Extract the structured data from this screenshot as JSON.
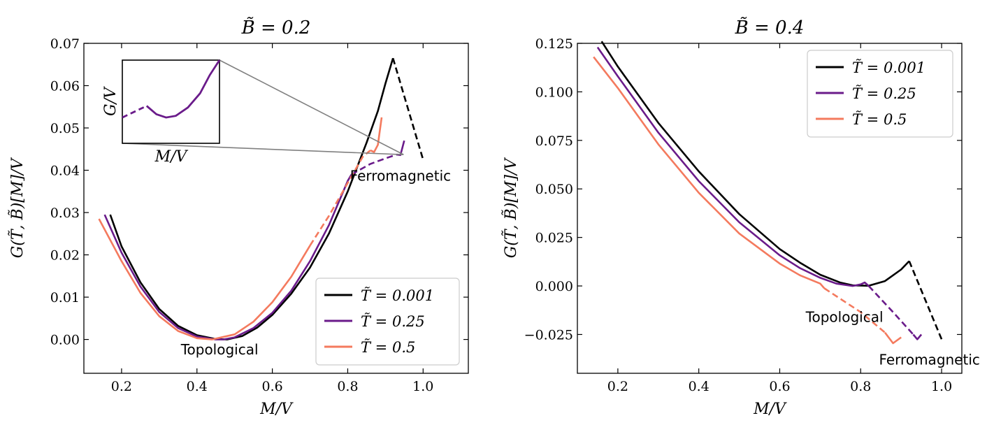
{
  "chart_data": [
    {
      "type": "line",
      "title": "B̃ = 0.2",
      "xlabel": "M/V",
      "ylabel": "G(T̃, B̃)[M]/V",
      "xlim": [
        0.1,
        1.12
      ],
      "ylim": [
        -0.008,
        0.07
      ],
      "xticks": [
        0.2,
        0.4,
        0.6,
        0.8,
        1.0
      ],
      "xtick_labels": [
        "0.2",
        "0.4",
        "0.6",
        "0.8",
        "1.0"
      ],
      "yticks": [
        0.0,
        0.01,
        0.02,
        0.03,
        0.04,
        0.05,
        0.06,
        0.07
      ],
      "ytick_labels": [
        "0.00",
        "0.01",
        "0.02",
        "0.03",
        "0.04",
        "0.05",
        "0.06",
        "0.07"
      ],
      "legend": {
        "placement": "lower-right"
      },
      "annotations": [
        {
          "text": "Topological",
          "x": 0.46,
          "y": -0.0035
        },
        {
          "text": "Ferromagnetic",
          "x": 0.94,
          "y": 0.0375
        }
      ],
      "inset": {
        "xlabel": "M/V",
        "ylabel": "G/V",
        "series": "T̃ = 0.25",
        "xlim": [
          0.915,
          0.955
        ],
        "ylim": [
          0.0425,
          0.0475
        ]
      },
      "series": [
        {
          "name": "T̃ = 0.001",
          "color": "#000000",
          "solid": [
            [
              0.17,
              0.0295
            ],
            [
              0.2,
              0.022
            ],
            [
              0.25,
              0.0135
            ],
            [
              0.3,
              0.0072
            ],
            [
              0.35,
              0.0032
            ],
            [
              0.4,
              0.001
            ],
            [
              0.45,
              0.0001
            ],
            [
              0.48,
              0.0
            ],
            [
              0.52,
              0.0008
            ],
            [
              0.56,
              0.0028
            ],
            [
              0.6,
              0.0058
            ],
            [
              0.65,
              0.0108
            ],
            [
              0.7,
              0.017
            ],
            [
              0.75,
              0.025
            ],
            [
              0.8,
              0.035
            ],
            [
              0.85,
              0.0465
            ],
            [
              0.88,
              0.054
            ],
            [
              0.9,
              0.0605
            ],
            [
              0.92,
              0.0665
            ]
          ],
          "dashed": [
            [
              0.92,
              0.0665
            ],
            [
              1.0,
              0.0425
            ]
          ]
        },
        {
          "name": "T̃ = 0.25",
          "color": "#6a1b8a",
          "solid": [
            [
              0.155,
              0.0295
            ],
            [
              0.2,
              0.0205
            ],
            [
              0.25,
              0.0125
            ],
            [
              0.3,
              0.0065
            ],
            [
              0.35,
              0.0027
            ],
            [
              0.4,
              0.0007
            ],
            [
              0.45,
              0.0
            ],
            [
              0.47,
              0.0
            ],
            [
              0.5,
              0.0005
            ],
            [
              0.55,
              0.0027
            ],
            [
              0.6,
              0.0063
            ],
            [
              0.65,
              0.0115
            ],
            [
              0.7,
              0.0185
            ],
            [
              0.75,
              0.027
            ],
            [
              0.8,
              0.0375
            ],
            [
              0.81,
              0.039
            ]
          ],
          "dashed": [
            [
              0.81,
              0.039
            ],
            [
              0.86,
              0.0415
            ],
            [
              0.9,
              0.0428
            ],
            [
              0.93,
              0.0437
            ]
          ],
          "tail": [
            [
              0.93,
              0.0437
            ],
            [
              0.94,
              0.0436
            ],
            [
              0.95,
              0.047
            ]
          ]
        },
        {
          "name": "T̃ = 0.5",
          "color": "#f47a5e",
          "solid": [
            [
              0.14,
              0.0285
            ],
            [
              0.2,
              0.0185
            ],
            [
              0.25,
              0.011
            ],
            [
              0.3,
              0.0055
            ],
            [
              0.35,
              0.002
            ],
            [
              0.4,
              0.0003
            ],
            [
              0.44,
              0.0
            ],
            [
              0.5,
              0.0012
            ],
            [
              0.55,
              0.0042
            ],
            [
              0.6,
              0.0088
            ],
            [
              0.65,
              0.0148
            ],
            [
              0.7,
              0.0222
            ]
          ],
          "dashed": [
            [
              0.7,
              0.0222
            ],
            [
              0.75,
              0.0292
            ],
            [
              0.8,
              0.037
            ],
            [
              0.84,
              0.0432
            ],
            [
              0.86,
              0.0447
            ]
          ],
          "tail": [
            [
              0.86,
              0.0447
            ],
            [
              0.87,
              0.0443
            ],
            [
              0.88,
              0.046
            ],
            [
              0.89,
              0.0525
            ]
          ]
        }
      ]
    },
    {
      "type": "line",
      "title": "B̃ = 0.4",
      "xlabel": "M/V",
      "ylabel": "G(T̃, B̃)[M]/V",
      "xlim": [
        0.1,
        1.05
      ],
      "ylim": [
        -0.045,
        0.125
      ],
      "xticks": [
        0.2,
        0.4,
        0.6,
        0.8,
        1.0
      ],
      "xtick_labels": [
        "0.2",
        "0.4",
        "0.6",
        "0.8",
        "1.0"
      ],
      "yticks": [
        -0.025,
        0.0,
        0.025,
        0.05,
        0.075,
        0.1,
        0.125
      ],
      "ytick_labels": [
        "−0.025",
        "0.000",
        "0.025",
        "0.050",
        "0.075",
        "0.100",
        "0.125"
      ],
      "legend": {
        "placement": "upper-right"
      },
      "annotations": [
        {
          "text": "Topological",
          "x": 0.76,
          "y": -0.0185
        },
        {
          "text": "Ferromagnetic",
          "x": 0.97,
          "y": -0.0405
        }
      ],
      "series": [
        {
          "name": "T̃ = 0.001",
          "color": "#000000",
          "solid": [
            [
              0.16,
              0.126
            ],
            [
              0.2,
              0.113
            ],
            [
              0.3,
              0.084
            ],
            [
              0.4,
              0.059
            ],
            [
              0.5,
              0.037
            ],
            [
              0.6,
              0.019
            ],
            [
              0.65,
              0.012
            ],
            [
              0.7,
              0.0058
            ],
            [
              0.75,
              0.0017
            ],
            [
              0.78,
              0.0003
            ],
            [
              0.82,
              0.0001
            ],
            [
              0.86,
              0.0025
            ],
            [
              0.9,
              0.0085
            ],
            [
              0.92,
              0.0128
            ]
          ],
          "dashed": [
            [
              0.92,
              0.0128
            ],
            [
              1.0,
              -0.0275
            ]
          ]
        },
        {
          "name": "T̃ = 0.25",
          "color": "#6a1b8a",
          "solid": [
            [
              0.15,
              0.123
            ],
            [
              0.2,
              0.108
            ],
            [
              0.3,
              0.079
            ],
            [
              0.4,
              0.054
            ],
            [
              0.5,
              0.0328
            ],
            [
              0.6,
              0.0158
            ],
            [
              0.65,
              0.0092
            ],
            [
              0.7,
              0.0042
            ],
            [
              0.74,
              0.0012
            ],
            [
              0.78,
              0.0
            ],
            [
              0.8,
              0.0008
            ],
            [
              0.81,
              0.0018
            ],
            [
              0.82,
              0.0
            ]
          ],
          "dashed": [
            [
              0.82,
              0.0
            ],
            [
              0.88,
              -0.0135
            ],
            [
              0.93,
              -0.025
            ]
          ],
          "tail": [
            [
              0.93,
              -0.025
            ],
            [
              0.94,
              -0.0275
            ],
            [
              0.95,
              -0.025
            ]
          ]
        },
        {
          "name": "T̃ = 0.5",
          "color": "#f47a5e",
          "solid": [
            [
              0.14,
              0.118
            ],
            [
              0.2,
              0.102
            ],
            [
              0.3,
              0.073
            ],
            [
              0.4,
              0.048
            ],
            [
              0.5,
              0.027
            ],
            [
              0.6,
              0.0115
            ],
            [
              0.65,
              0.0055
            ],
            [
              0.7,
              0.0012
            ],
            [
              0.71,
              -0.0012
            ]
          ],
          "dashed": [
            [
              0.71,
              -0.0012
            ],
            [
              0.8,
              -0.0135
            ],
            [
              0.86,
              -0.024
            ]
          ],
          "tail": [
            [
              0.86,
              -0.024
            ],
            [
              0.88,
              -0.0295
            ],
            [
              0.9,
              -0.0265
            ]
          ]
        }
      ]
    }
  ]
}
